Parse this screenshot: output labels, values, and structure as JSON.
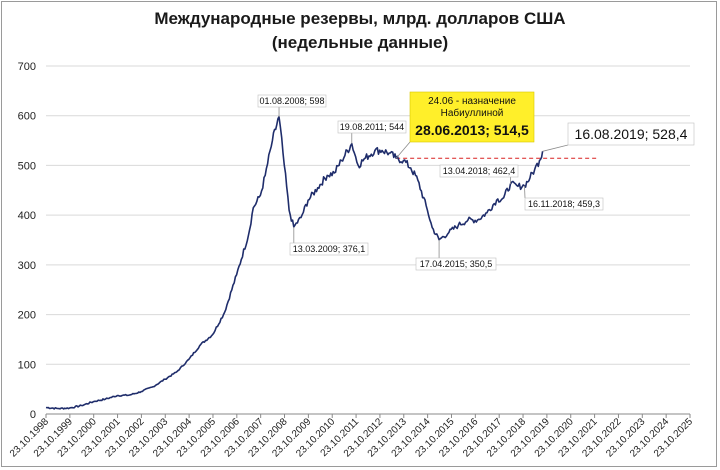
{
  "chart_data": {
    "type": "line",
    "title": "Международные резервы, млрд. долларов США",
    "subtitle": "(недельные данные)",
    "xlabel": "",
    "ylabel": "",
    "ylim": [
      0,
      700
    ],
    "yticks": [
      "0",
      "100",
      "200",
      "300",
      "400",
      "500",
      "600",
      "700"
    ],
    "xticks": [
      "23.10.1998",
      "23.10.1999",
      "23.10.2000",
      "23.10.2001",
      "23.10.2002",
      "23.10.2003",
      "23.10.2004",
      "23.10.2005",
      "23.10.2006",
      "23.10.2007",
      "23.10.2008",
      "23.10.2009",
      "23.10.2010",
      "23.10.2011",
      "23.10.2012",
      "23.10.2013",
      "23.10.2014",
      "23.10.2015",
      "23.10.2016",
      "23.10.2017",
      "23.10.2018",
      "23.10.2019",
      "23.10.2020",
      "23.10.2021",
      "23.10.2022",
      "23.10.2023",
      "23.10.2024",
      "23.10.2025"
    ],
    "grid": true,
    "line_color": "#1f2d6b",
    "series": [
      {
        "values": [
          [
            1998.81,
            13
          ],
          [
            1999.3,
            11
          ],
          [
            1999.8,
            12
          ],
          [
            2000.3,
            17
          ],
          [
            2000.8,
            25
          ],
          [
            2001.3,
            30
          ],
          [
            2001.8,
            37
          ],
          [
            2002.3,
            38
          ],
          [
            2002.8,
            45
          ],
          [
            2003.3,
            55
          ],
          [
            2003.8,
            70
          ],
          [
            2004.3,
            85
          ],
          [
            2004.8,
            110
          ],
          [
            2005.3,
            140
          ],
          [
            2005.8,
            160
          ],
          [
            2006.3,
            205
          ],
          [
            2006.8,
            280
          ],
          [
            2007.3,
            360
          ],
          [
            2007.5,
            415
          ],
          [
            2007.8,
            440
          ],
          [
            2008.0,
            480
          ],
          [
            2008.3,
            550
          ],
          [
            2008.58,
            598
          ],
          [
            2008.8,
            500
          ],
          [
            2009.0,
            410
          ],
          [
            2009.2,
            376.1
          ],
          [
            2009.5,
            395
          ],
          [
            2009.8,
            430
          ],
          [
            2010.2,
            455
          ],
          [
            2010.6,
            480
          ],
          [
            2010.9,
            485
          ],
          [
            2011.2,
            510
          ],
          [
            2011.63,
            544
          ],
          [
            2011.9,
            500
          ],
          [
            2012.2,
            515
          ],
          [
            2012.6,
            530
          ],
          [
            2012.9,
            530
          ],
          [
            2013.2,
            525
          ],
          [
            2013.49,
            514.5
          ],
          [
            2013.8,
            510
          ],
          [
            2014.1,
            495
          ],
          [
            2014.4,
            470
          ],
          [
            2014.8,
            410
          ],
          [
            2015.0,
            375
          ],
          [
            2015.29,
            350.5
          ],
          [
            2015.7,
            365
          ],
          [
            2016.1,
            380
          ],
          [
            2016.5,
            390
          ],
          [
            2016.9,
            390
          ],
          [
            2017.3,
            405
          ],
          [
            2017.7,
            430
          ],
          [
            2018.0,
            435
          ],
          [
            2018.28,
            462.4
          ],
          [
            2018.6,
            458
          ],
          [
            2018.87,
            459.3
          ],
          [
            2019.1,
            475
          ],
          [
            2019.3,
            492
          ],
          [
            2019.5,
            510
          ],
          [
            2019.63,
            528.4
          ]
        ]
      }
    ],
    "reference_line": {
      "value": 514.5,
      "from_x": 2013.49,
      "to_x": 2022.0,
      "color": "#d92020",
      "style": "dashed"
    },
    "annotations": [
      {
        "text": "01.08.2008; 598",
        "x": 2008.58,
        "y": 598,
        "style": "small"
      },
      {
        "text": "19.08.2011; 544",
        "x": 2011.63,
        "y": 544,
        "style": "small"
      },
      {
        "text": "13.03.2009; 376,1",
        "x": 2009.2,
        "y": 376.1,
        "style": "small"
      },
      {
        "text": "17.04.2015; 350,5",
        "x": 2015.29,
        "y": 350.5,
        "style": "small"
      },
      {
        "text": "13.04.2018; 462,4",
        "x": 2018.28,
        "y": 462.4,
        "style": "small"
      },
      {
        "text": "16.11.2018; 459,3",
        "x": 2018.87,
        "y": 459.3,
        "style": "small"
      },
      {
        "text": "16.08.2019; 528,4",
        "x": 2019.63,
        "y": 528.4,
        "style": "large"
      },
      {
        "lines": [
          "24.06 - назначение",
          "Набиуллиной",
          "28.06.2013; 514,5"
        ],
        "x": 2013.49,
        "y": 514.5,
        "style": "highlight",
        "background": "#ffef2a"
      }
    ]
  }
}
